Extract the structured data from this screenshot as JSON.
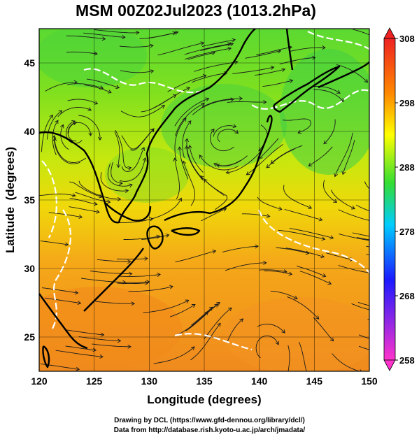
{
  "title": "MSM 00Z02Jul2023 (1013.2hPa)",
  "xlabel": "Longitude (degrees)",
  "ylabel": "Latitude  (degrees)",
  "x_ticks": [
    "120",
    "125",
    "130",
    "135",
    "140",
    "145",
    "150"
  ],
  "y_ticks": [
    "25",
    "30",
    "35",
    "40",
    "45"
  ],
  "colorbar_ticks": [
    "308",
    "298",
    "288",
    "278",
    "268",
    "258"
  ],
  "credit_line1": "Drawing by DCL (https://www.gfd-dennou.org/library/dcl/)",
  "credit_line2": "Data from http://database.rish.kyoto-u.ac.jp/arch/jmadata/",
  "map_data": {
    "variable": "temperature (K) with streamlines",
    "lon_range": [
      120,
      150
    ],
    "lat_range": [
      22.5,
      47.5
    ],
    "color_range": [
      258,
      308
    ],
    "colorbar_colors": [
      "#ff33cc",
      "#1a1aff",
      "#00ccff",
      "#33dd33",
      "#ffff00",
      "#ff8800",
      "#ee2222"
    ]
  }
}
